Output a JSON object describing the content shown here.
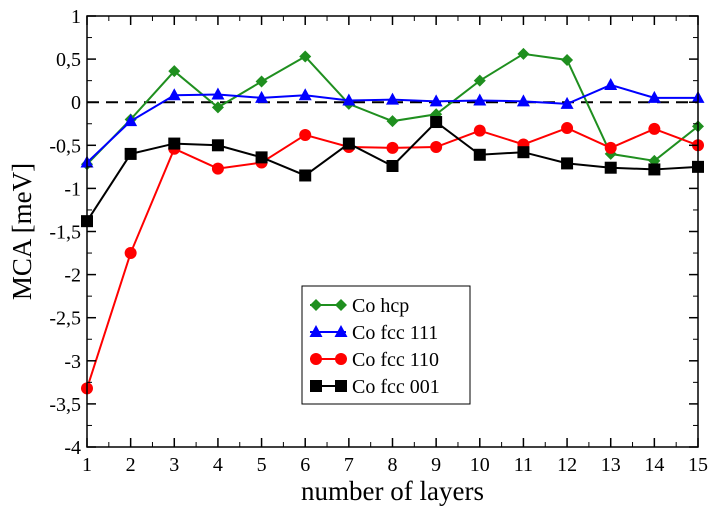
{
  "chart_data": {
    "type": "line",
    "title": "",
    "xlabel": "number of layers",
    "ylabel": "MCA [meV]",
    "xlim": [
      1,
      15
    ],
    "ylim": [
      -4,
      1
    ],
    "x_ticks": [
      1,
      2,
      3,
      4,
      5,
      6,
      7,
      8,
      9,
      10,
      11,
      12,
      13,
      14,
      15
    ],
    "x_tick_labels": [
      "1",
      "2",
      "3",
      "4",
      "5",
      "6",
      "7",
      "8",
      "9",
      "10",
      "11",
      "12",
      "13",
      "14",
      "15"
    ],
    "y_ticks": [
      1,
      0.5,
      0,
      -0.5,
      -1,
      -1.5,
      -2,
      -2.5,
      -3,
      -3.5,
      -4
    ],
    "y_tick_labels": [
      "1",
      "0,5",
      "0",
      "-0,5",
      "-1",
      "-1,5",
      "-2",
      "-2,5",
      "-3",
      "-3,5",
      "-4"
    ],
    "reference_line": {
      "y": 0,
      "style": "dashed",
      "color": "#000000"
    },
    "grid": false,
    "legend_position": "bottom-center",
    "x": [
      1,
      2,
      3,
      4,
      5,
      6,
      7,
      8,
      9,
      10,
      11,
      12,
      13,
      14,
      15
    ],
    "series": [
      {
        "name": "Co hcp",
        "color": "#1f8f1f",
        "marker": "diamond",
        "values": [
          -0.72,
          -0.2,
          0.36,
          -0.06,
          0.24,
          0.53,
          -0.02,
          -0.22,
          -0.14,
          0.25,
          0.56,
          0.49,
          -0.6,
          -0.68,
          -0.28
        ]
      },
      {
        "name": "Co fcc 111",
        "color": "#0000ff",
        "marker": "triangle",
        "values": [
          -0.7,
          -0.22,
          0.08,
          0.09,
          0.05,
          0.08,
          0.02,
          0.03,
          0.01,
          0.02,
          0.01,
          -0.02,
          0.2,
          0.05,
          0.05
        ]
      },
      {
        "name": "Co fcc 110",
        "color": "#ff0000",
        "marker": "circle",
        "values": [
          -3.32,
          -1.75,
          -0.54,
          -0.77,
          -0.7,
          -0.38,
          -0.52,
          -0.53,
          -0.52,
          -0.33,
          -0.49,
          -0.3,
          -0.53,
          -0.31,
          -0.5
        ]
      },
      {
        "name": "Co fcc 001",
        "color": "#000000",
        "marker": "square",
        "values": [
          -1.38,
          -0.6,
          -0.48,
          -0.5,
          -0.64,
          -0.85,
          -0.48,
          -0.74,
          -0.23,
          -0.61,
          -0.58,
          -0.71,
          -0.76,
          -0.78,
          -0.75
        ]
      }
    ]
  }
}
